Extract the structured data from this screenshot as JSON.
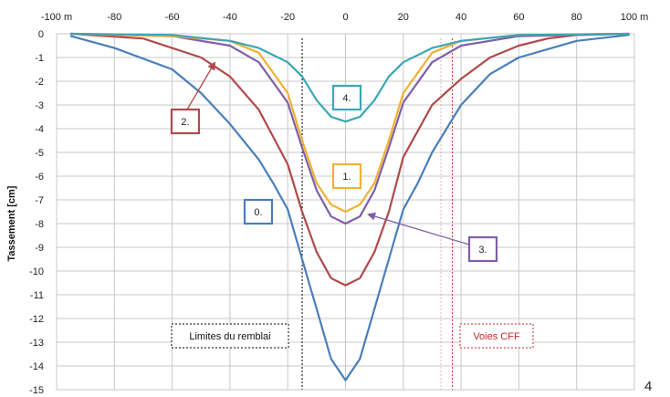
{
  "chart_data": {
    "type": "line",
    "xlabel": "",
    "ylabel": "Tassement [cm]",
    "xlim": [
      -100,
      100
    ],
    "ylim": [
      -15,
      0
    ],
    "x_ticks": [
      "-100 m",
      "-80",
      "-60",
      "-40",
      "-20",
      "0",
      "20",
      "40",
      "60",
      "80",
      "100 m"
    ],
    "y_ticks": [
      "0",
      "-1",
      "-2",
      "-3",
      "-4",
      "-5",
      "-6",
      "-7",
      "-8",
      "-9",
      "-10",
      "-11",
      "-12",
      "-13",
      "-14",
      "-15"
    ],
    "grid": true,
    "colors": {
      "0.": "#4a7ebb",
      "1.": "#f2b134",
      "2.": "#b04a4a",
      "3.": "#7e5fa8",
      "4.": "#3aa6b7"
    },
    "series": [
      {
        "name": "0.",
        "x": [
          -95,
          -80,
          -60,
          -50,
          -40,
          -30,
          -25,
          -20,
          -15,
          -10,
          -5,
          0,
          5,
          10,
          15,
          20,
          25,
          30,
          40,
          50,
          60,
          80,
          98
        ],
        "y": [
          -0.1,
          -0.6,
          -1.5,
          -2.5,
          -3.8,
          -5.3,
          -6.3,
          -7.4,
          -9.5,
          -11.6,
          -13.7,
          -14.6,
          -13.7,
          -11.6,
          -9.5,
          -7.4,
          -6.3,
          -5.0,
          -3.0,
          -1.7,
          -1.0,
          -0.3,
          -0.05
        ]
      },
      {
        "name": "1.",
        "x": [
          -95,
          -60,
          -40,
          -30,
          -20,
          -15,
          -10,
          -5,
          0,
          5,
          10,
          15,
          20,
          30,
          40,
          60,
          98
        ],
        "y": [
          0,
          -0.1,
          -0.3,
          -0.8,
          -2.5,
          -4.5,
          -6.3,
          -7.2,
          -7.5,
          -7.2,
          -6.3,
          -4.5,
          -2.5,
          -0.8,
          -0.3,
          -0.05,
          0
        ]
      },
      {
        "name": "2.",
        "x": [
          -95,
          -70,
          -50,
          -40,
          -30,
          -20,
          -15,
          -10,
          -5,
          0,
          5,
          10,
          15,
          20,
          30,
          40,
          50,
          60,
          70,
          80,
          98
        ],
        "y": [
          0,
          -0.2,
          -1.0,
          -1.8,
          -3.2,
          -5.5,
          -7.5,
          -9.2,
          -10.3,
          -10.6,
          -10.3,
          -9.2,
          -7.5,
          -5.2,
          -3.0,
          -1.9,
          -1.0,
          -0.5,
          -0.2,
          -0.05,
          0
        ]
      },
      {
        "name": "3.",
        "x": [
          -95,
          -60,
          -40,
          -30,
          -20,
          -15,
          -10,
          -5,
          0,
          5,
          10,
          15,
          20,
          30,
          40,
          60,
          98
        ],
        "y": [
          0,
          -0.1,
          -0.5,
          -1.2,
          -2.9,
          -4.8,
          -6.6,
          -7.7,
          -8.0,
          -7.7,
          -6.6,
          -4.8,
          -2.9,
          -1.2,
          -0.5,
          -0.1,
          0
        ]
      },
      {
        "name": "4.",
        "x": [
          -95,
          -60,
          -40,
          -30,
          -20,
          -15,
          -10,
          -5,
          0,
          5,
          10,
          15,
          20,
          30,
          40,
          60,
          98
        ],
        "y": [
          0,
          -0.05,
          -0.3,
          -0.6,
          -1.2,
          -1.8,
          -2.8,
          -3.5,
          -3.7,
          -3.5,
          -2.8,
          -1.8,
          -1.2,
          -0.6,
          -0.3,
          -0.05,
          0
        ]
      }
    ],
    "labels": {
      "0.": "0.",
      "1.": "1.",
      "2.": "2.",
      "3.": "3.",
      "4.": "4."
    },
    "zones": [
      {
        "name": "Limites du remblai",
        "x": -15,
        "color": "#000000"
      },
      {
        "name": "Voies CFF",
        "x": [
          33,
          37
        ],
        "color": "#c62828"
      }
    ],
    "annotation_arrows": [
      {
        "label": "2.",
        "target": [
          -45,
          -1.0
        ]
      },
      {
        "label": "3.",
        "target": [
          8,
          -7.5
        ]
      }
    ]
  },
  "page_number": "4"
}
